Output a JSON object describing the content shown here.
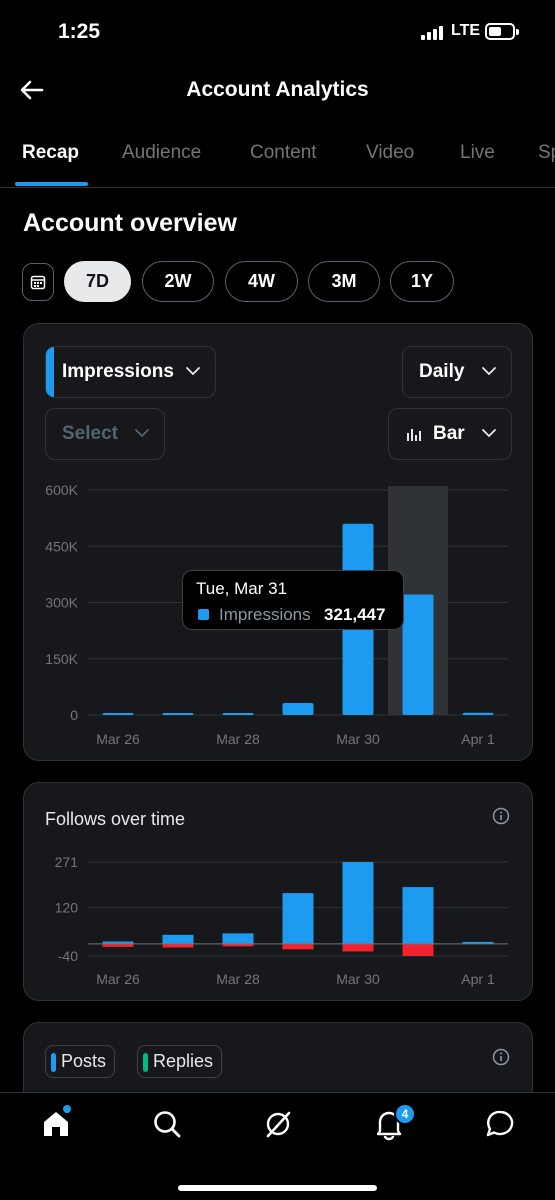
{
  "status_bar": {
    "time": "1:25",
    "network": "LTE"
  },
  "header": {
    "title": "Account Analytics",
    "back_icon": "arrow-left-icon"
  },
  "tabs": [
    {
      "label": "Recap",
      "active": true
    },
    {
      "label": "Audience",
      "active": false
    },
    {
      "label": "Content",
      "active": false
    },
    {
      "label": "Video",
      "active": false
    },
    {
      "label": "Live",
      "active": false
    },
    {
      "label": "Sp",
      "active": false
    }
  ],
  "overview": {
    "title": "Account overview",
    "ranges": [
      {
        "label": "7D",
        "active": true
      },
      {
        "label": "2W",
        "active": false
      },
      {
        "label": "4W",
        "active": false
      },
      {
        "label": "3M",
        "active": false
      },
      {
        "label": "1Y",
        "active": false
      }
    ]
  },
  "impressions_card": {
    "metric_select": "Impressions",
    "interval_select": "Daily",
    "compare_select": "Select",
    "chart_type_select": "Bar",
    "tooltip": {
      "date": "Tue, Mar 31",
      "series": "Impressions",
      "value": "321,447"
    }
  },
  "follows_card": {
    "title": "Follows over time"
  },
  "content_card": {
    "chips": [
      {
        "label": "Posts",
        "color": "#1d9bf0"
      },
      {
        "label": "Replies",
        "color": "#00ba7c"
      }
    ]
  },
  "bottom_nav": {
    "notifications_badge": "4"
  },
  "colors": {
    "accent": "#1d9bf0",
    "negative": "#f4212e",
    "card_bg": "#16181c",
    "highlight_column": "#2f3336"
  },
  "chart_data": [
    {
      "type": "bar",
      "title": "",
      "categories": [
        "Mar 26",
        "Mar 27",
        "Mar 28",
        "Mar 29",
        "Mar 30",
        "Mar 31",
        "Apr 1"
      ],
      "x_tick_labels": [
        "Mar 26",
        "Mar 28",
        "Mar 30",
        "Apr 1"
      ],
      "y_tick_labels": [
        "600K",
        "450K",
        "300K",
        "150K",
        "0"
      ],
      "ylim": [
        0,
        600000
      ],
      "series": [
        {
          "name": "Impressions",
          "values": [
            2000,
            3000,
            2000,
            32000,
            510000,
            321447,
            6000
          ]
        }
      ],
      "highlighted_category": "Mar 31",
      "grid": true
    },
    {
      "type": "bar",
      "title": "Follows over time",
      "categories": [
        "Mar 26",
        "Mar 27",
        "Mar 28",
        "Mar 29",
        "Mar 30",
        "Mar 31",
        "Apr 1"
      ],
      "x_tick_labels": [
        "Mar 26",
        "Mar 28",
        "Mar 30",
        "Apr 1"
      ],
      "y_tick_labels": [
        "271",
        "120",
        "-40"
      ],
      "ylim": [
        -40,
        271
      ],
      "series": [
        {
          "values": [
            8,
            30,
            35,
            168,
            271,
            188,
            5
          ]
        },
        {
          "values": [
            -10,
            -12,
            -8,
            -18,
            -25,
            -40,
            0
          ]
        }
      ],
      "grid": true
    }
  ]
}
